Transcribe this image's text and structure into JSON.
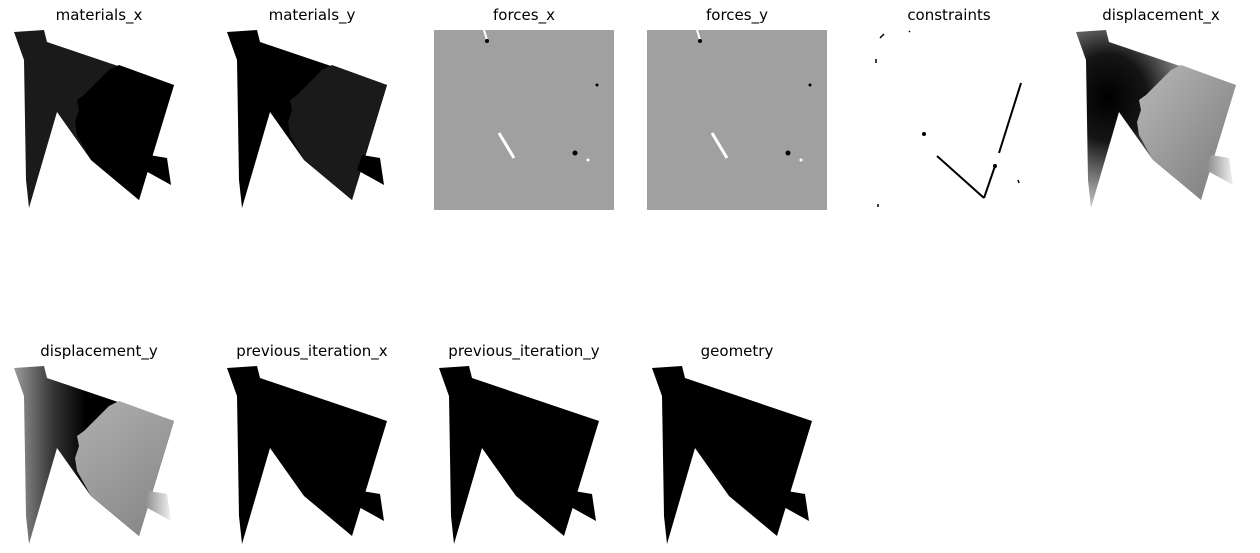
{
  "panels": [
    {
      "id": "materials_x",
      "title": "materials_x",
      "kind": "materials_x"
    },
    {
      "id": "materials_y",
      "title": "materials_y",
      "kind": "materials_y"
    },
    {
      "id": "forces_x",
      "title": "forces_x",
      "kind": "forces"
    },
    {
      "id": "forces_y",
      "title": "forces_y",
      "kind": "forces"
    },
    {
      "id": "constraints",
      "title": "constraints",
      "kind": "constraints"
    },
    {
      "id": "displacement_x",
      "title": "displacement_x",
      "kind": "displacement_x"
    },
    {
      "id": "displacement_y",
      "title": "displacement_y",
      "kind": "displacement_y"
    },
    {
      "id": "previous_iteration_x",
      "title": "previous_iteration_x",
      "kind": "solid"
    },
    {
      "id": "previous_iteration_y",
      "title": "previous_iteration_y",
      "kind": "solid"
    },
    {
      "id": "geometry",
      "title": "geometry",
      "kind": "solid"
    }
  ],
  "colors": {
    "black": "#000000",
    "dark_gray": "#1a1a1a",
    "mid_gray": "#a0a0a0",
    "white": "#ffffff"
  }
}
